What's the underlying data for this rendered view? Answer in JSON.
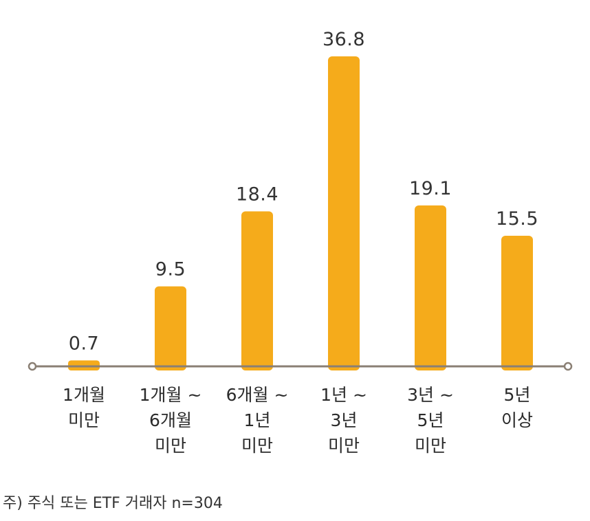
{
  "chart_data": {
    "type": "bar",
    "categories": [
      [
        "1개월",
        "미만"
      ],
      [
        "1개월 ~",
        "6개월",
        "미만"
      ],
      [
        "6개월 ~",
        "1년",
        "미만"
      ],
      [
        "1년 ~",
        "3년",
        "미만"
      ],
      [
        "3년 ~",
        "5년",
        "미만"
      ],
      [
        "5년",
        "이상"
      ]
    ],
    "values": [
      0.7,
      9.5,
      18.4,
      36.8,
      19.1,
      15.5
    ],
    "value_labels": [
      "0.7",
      "9.5",
      "18.4",
      "36.8",
      "19.1",
      "15.5"
    ],
    "ylim": [
      0,
      36.8
    ],
    "grid": false,
    "legend": "none"
  },
  "colors": {
    "bar": "#F5AB1B",
    "axis": "#8a7f74",
    "text": "#333333"
  },
  "note": "주) 주식 또는 ETF 거래자 n=304"
}
